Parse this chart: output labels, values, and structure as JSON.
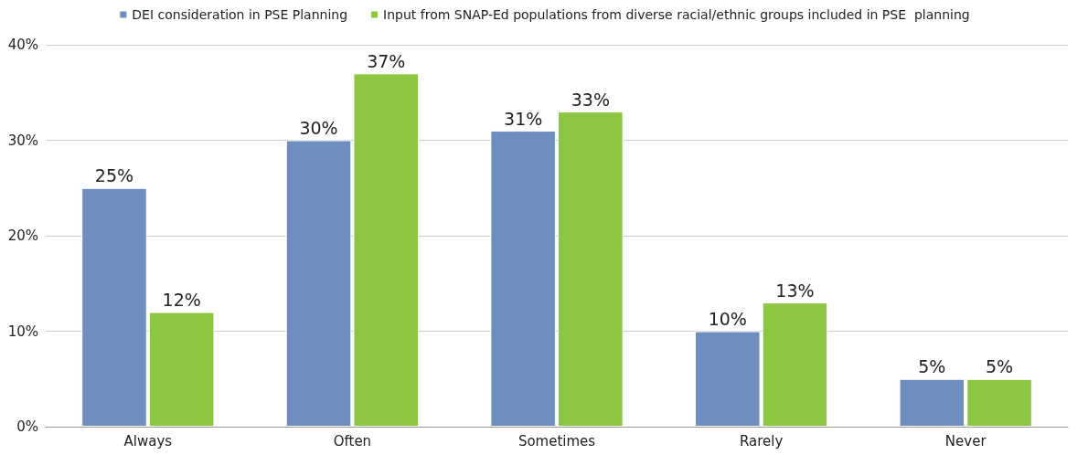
{
  "chart_data": {
    "type": "bar",
    "categories": [
      "Always",
      "Often",
      "Sometimes",
      "Rarely",
      "Never"
    ],
    "series": [
      {
        "name": "DEI consideration in PSE Planning",
        "color": "#6d8ebf",
        "values": [
          25,
          30,
          31,
          10,
          5
        ]
      },
      {
        "name": "Input from SNAP-Ed populations from diverse racial/ethnic groups included in PSE  planning",
        "color": "#8cc540",
        "values": [
          12,
          37,
          33,
          13,
          5
        ]
      }
    ],
    "ylim": [
      0,
      40
    ],
    "yticks": [
      {
        "value": 0,
        "label": "0%"
      },
      {
        "value": 10,
        "label": "10%"
      },
      {
        "value": 20,
        "label": "20%"
      },
      {
        "value": 30,
        "label": "30%"
      },
      {
        "value": 40,
        "label": "40%"
      }
    ],
    "value_labels": [
      [
        "25%",
        "30%",
        "31%",
        "10%",
        "5%"
      ],
      [
        "12%",
        "37%",
        "33%",
        "13%",
        "5%"
      ]
    ],
    "grid": true,
    "legend": "top"
  }
}
